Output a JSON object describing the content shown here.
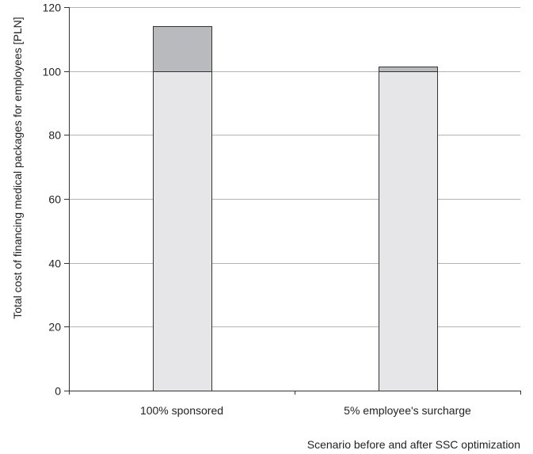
{
  "chart_data": {
    "type": "bar",
    "stacked": true,
    "categories": [
      "100% sponsored",
      "5% employee's surcharge"
    ],
    "series": [
      {
        "values": [
          100,
          100
        ],
        "color": "#e6e6e8"
      },
      {
        "values": [
          14,
          1.5
        ],
        "color": "#b9babd"
      }
    ],
    "title": "",
    "xlabel": "Scenario before and after SSC optimization",
    "ylabel": "Total cost of financing medical packages for employees [PLN]",
    "ylim": [
      0,
      120
    ],
    "yticks": [
      0,
      20,
      40,
      60,
      80,
      100,
      120
    ],
    "grid": true,
    "legend": "none"
  },
  "colors": {
    "grid": "#b5b5b5",
    "axis": "#333333",
    "bar_stroke": "#333333"
  }
}
